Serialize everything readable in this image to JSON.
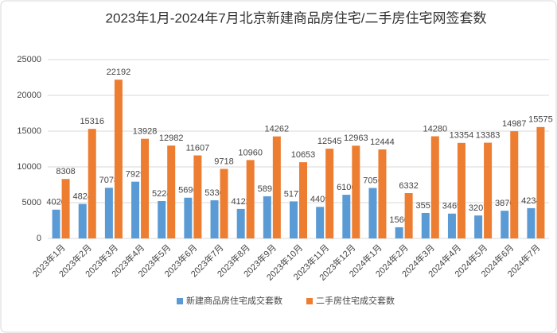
{
  "chart_data": {
    "type": "bar",
    "title": "2023年1月-2024年7月北京新建商品房住宅/二手房住宅网签套数",
    "categories": [
      "2023年1月",
      "2023年2月",
      "2023年3月",
      "2023年4月",
      "2023年5月",
      "2023年6月",
      "2023年7月",
      "2023年8月",
      "2023年9月",
      "2023年10月",
      "2023年11月",
      "2023年12月",
      "2024年1月",
      "2024年2月",
      "2024年3月",
      "2024年4月",
      "2024年5月",
      "2024年6月",
      "2024年7月"
    ],
    "series": [
      {
        "name": "新建商品房住宅成交套数",
        "color": "#5b9bd5",
        "values": [
          4020,
          4824,
          7078,
          7929,
          5224,
          5696,
          5330,
          4122,
          5891,
          5177,
          4409,
          6106,
          7056,
          1560,
          3557,
          3469,
          3207,
          3870,
          4234
        ]
      },
      {
        "name": "二手房住宅成交套数",
        "color": "#ed7d31",
        "values": [
          8308,
          15316,
          22192,
          13928,
          12982,
          11607,
          9718,
          10960,
          14262,
          10653,
          12545,
          12963,
          12444,
          6332,
          14280,
          13354,
          13383,
          14987,
          15575
        ]
      }
    ],
    "ylim": [
      0,
      25000
    ],
    "yticks": [
      0,
      5000,
      10000,
      15000,
      20000,
      25000
    ],
    "grid": true,
    "legend": "bottom"
  }
}
